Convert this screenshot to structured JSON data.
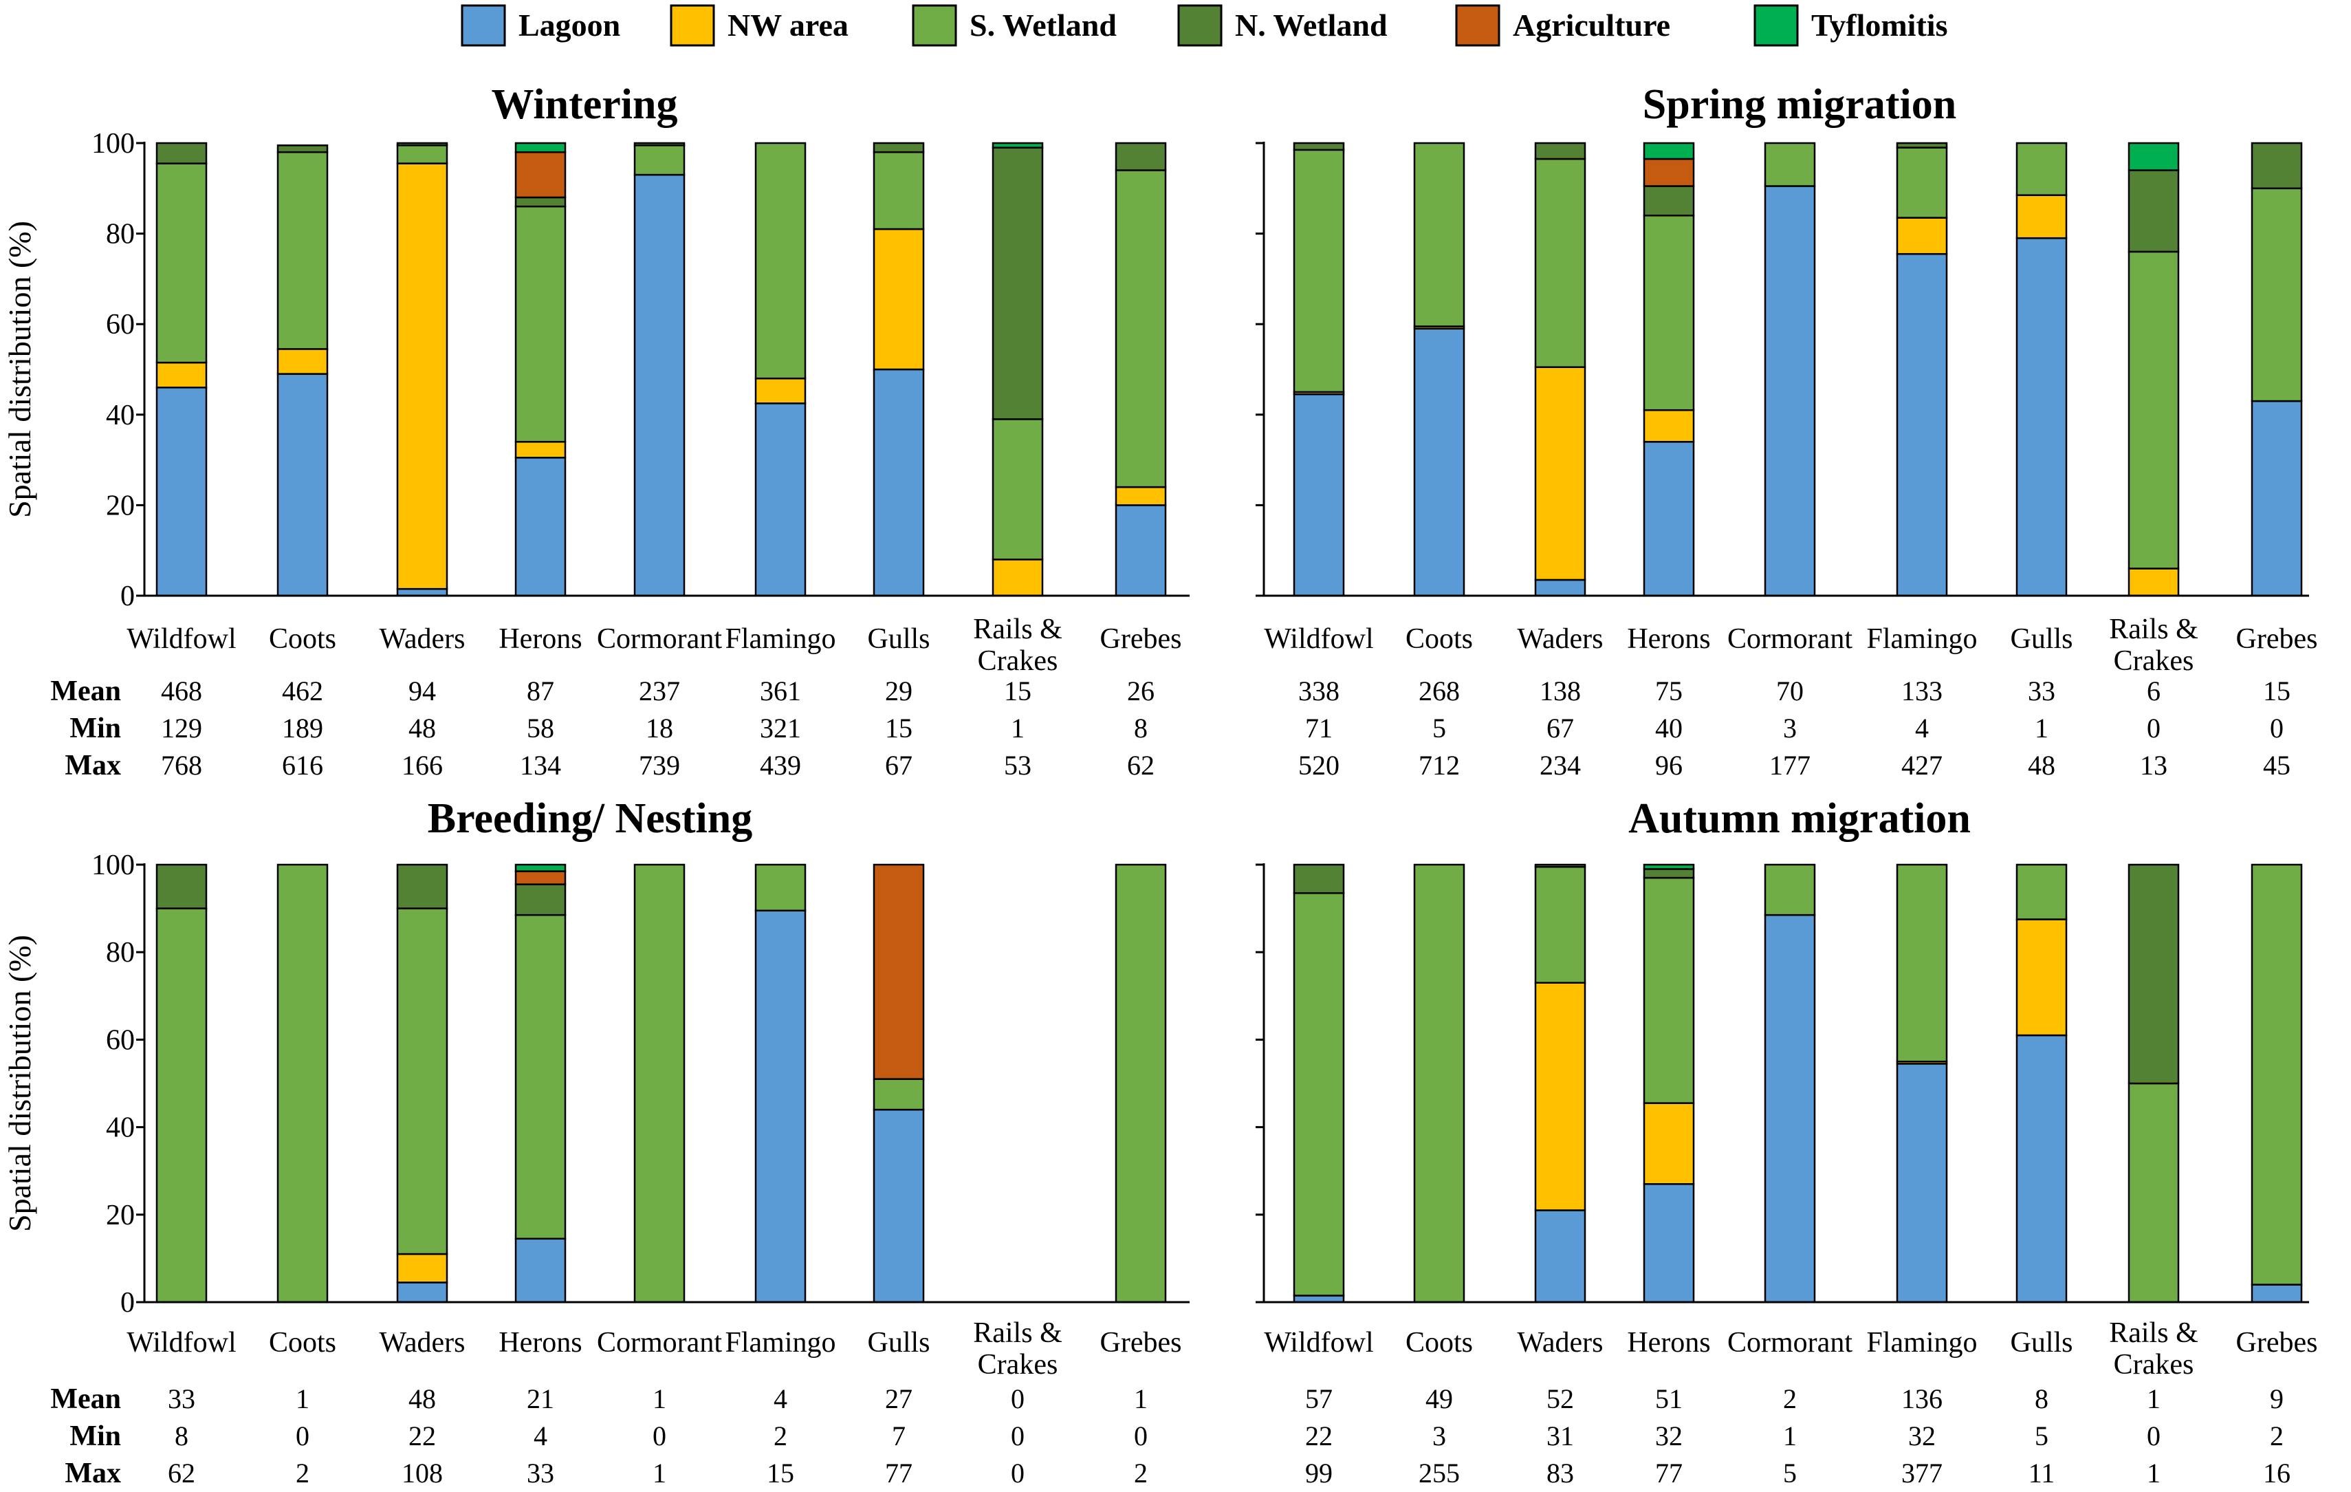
{
  "chart_data": {
    "type": "bar",
    "stacked": true,
    "legend": [
      {
        "name": "Lagoon",
        "color": "#5B9BD5"
      },
      {
        "name": "NW area",
        "color": "#FFC000"
      },
      {
        "name": "S. Wetland",
        "color": "#70AD47"
      },
      {
        "name": "N. Wetland",
        "color": "#548235"
      },
      {
        "name": "Agriculture",
        "color": "#C55A11"
      },
      {
        "name": "Tyflomitis",
        "color": "#00B050"
      }
    ],
    "ylabel": "Spatial distribution (%)",
    "ylim": [
      0,
      100
    ],
    "yticks": [
      "0",
      "20",
      "40",
      "60",
      "80",
      "100"
    ],
    "row_labels": [
      "Mean",
      "Min",
      "Max"
    ],
    "panels": [
      {
        "title": "Wintering",
        "categories": [
          "Wildfowl",
          "Coots",
          "Waders",
          "Herons",
          "Cormorant",
          "Flamingo",
          "Gulls",
          "Rails & Crakes",
          "Grebes"
        ],
        "series": [
          {
            "name": "Lagoon",
            "values": [
              46,
              49,
              1.5,
              30.5,
              93,
              42.5,
              50,
              0,
              20
            ]
          },
          {
            "name": "NW area",
            "values": [
              5.5,
              5.5,
              94,
              3.5,
              0,
              5.5,
              31,
              8,
              4
            ]
          },
          {
            "name": "S. Wetland",
            "values": [
              44,
              43.5,
              4,
              52,
              6.5,
              52,
              17,
              31,
              70
            ]
          },
          {
            "name": "N. Wetland",
            "values": [
              4.5,
              1.5,
              0.5,
              2,
              0.5,
              0,
              2,
              60,
              6
            ]
          },
          {
            "name": "Agriculture",
            "values": [
              0,
              0,
              0,
              10,
              0,
              0,
              0,
              0,
              0
            ]
          },
          {
            "name": "Tyflomitis",
            "values": [
              0,
              0,
              0,
              2,
              0,
              0,
              0,
              1,
              0
            ]
          }
        ],
        "stats": {
          "Mean": [
            "468",
            "462",
            "94",
            "87",
            "237",
            "361",
            "29",
            "15",
            "26"
          ],
          "Min": [
            "129",
            "189",
            "48",
            "58",
            "18",
            "321",
            "15",
            "1",
            "8"
          ],
          "Max": [
            "768",
            "616",
            "166",
            "134",
            "739",
            "439",
            "67",
            "53",
            "62"
          ]
        }
      },
      {
        "title": "Spring  migration",
        "categories": [
          "Wildfowl",
          "Coots",
          "Waders",
          "Herons",
          "Cormorant",
          "Flamingo",
          "Gulls",
          "Rails & Crakes",
          "Grebes"
        ],
        "series": [
          {
            "name": "Lagoon",
            "values": [
              44.5,
              59,
              3.5,
              34,
              90.5,
              75.5,
              79,
              0,
              43
            ]
          },
          {
            "name": "NW area",
            "values": [
              0.5,
              0.5,
              47,
              7,
              0,
              8,
              9.5,
              6,
              0
            ]
          },
          {
            "name": "S. Wetland",
            "values": [
              53.5,
              40.5,
              46,
              43,
              9.5,
              15.5,
              11.5,
              70,
              47
            ]
          },
          {
            "name": "N. Wetland",
            "values": [
              1.5,
              0,
              3.5,
              6.5,
              0,
              1,
              0,
              18,
              10
            ]
          },
          {
            "name": "Agriculture",
            "values": [
              0,
              0,
              0,
              6,
              0,
              0,
              0,
              0,
              0
            ]
          },
          {
            "name": "Tyflomitis",
            "values": [
              0,
              0,
              0,
              3.5,
              0,
              0,
              0,
              6,
              0
            ]
          }
        ],
        "stats": {
          "Mean": [
            "338",
            "268",
            "138",
            "75",
            "70",
            "133",
            "33",
            "6",
            "15"
          ],
          "Min": [
            "71",
            "5",
            "67",
            "40",
            "3",
            "4",
            "1",
            "0",
            "0"
          ],
          "Max": [
            "520",
            "712",
            "234",
            "96",
            "177",
            "427",
            "48",
            "13",
            "45"
          ]
        }
      },
      {
        "title": "Breeding/ Nesting",
        "categories": [
          "Wildfowl",
          "Coots",
          "Waders",
          "Herons",
          "Cormorant",
          "Flamingo",
          "Gulls",
          "Rails & Crakes",
          "Grebes"
        ],
        "series": [
          {
            "name": "Lagoon",
            "values": [
              0,
              0,
              4.5,
              14.5,
              0,
              89.5,
              44,
              0,
              0
            ]
          },
          {
            "name": "NW area",
            "values": [
              0,
              0,
              6.5,
              0,
              0,
              0,
              0,
              0,
              0
            ]
          },
          {
            "name": "S. Wetland",
            "values": [
              90,
              100,
              79,
              74,
              100,
              10.5,
              7,
              0,
              100
            ]
          },
          {
            "name": "N. Wetland",
            "values": [
              10,
              0,
              10,
              7,
              0,
              0,
              0,
              0,
              0
            ]
          },
          {
            "name": "Agriculture",
            "values": [
              0,
              0,
              0,
              3,
              0,
              0,
              49,
              0,
              0
            ]
          },
          {
            "name": "Tyflomitis",
            "values": [
              0,
              0,
              0,
              1.5,
              0,
              0,
              0,
              0,
              0
            ]
          }
        ],
        "stats": {
          "Mean": [
            "33",
            "1",
            "48",
            "21",
            "1",
            "4",
            "27",
            "0",
            "1"
          ],
          "Min": [
            "8",
            "0",
            "22",
            "4",
            "0",
            "2",
            "7",
            "0",
            "0"
          ],
          "Max": [
            "62",
            "2",
            "108",
            "33",
            "1",
            "15",
            "77",
            "0",
            "2"
          ]
        }
      },
      {
        "title": "Autumn migration",
        "categories": [
          "Wildfowl",
          "Coots",
          "Waders",
          "Herons",
          "Cormorant",
          "Flamingo",
          "Gulls",
          "Rails & Crakes",
          "Grebes"
        ],
        "series": [
          {
            "name": "Lagoon",
            "values": [
              1.5,
              0,
              21,
              27,
              88.5,
              54.5,
              61,
              0,
              4
            ]
          },
          {
            "name": "NW area",
            "values": [
              0,
              0,
              52,
              18.5,
              0,
              0.5,
              26.5,
              0,
              0
            ]
          },
          {
            "name": "S. Wetland",
            "values": [
              92,
              100,
              26.5,
              51.5,
              11.5,
              45,
              12.5,
              50,
              96
            ]
          },
          {
            "name": "N. Wetland",
            "values": [
              6.5,
              0,
              0.5,
              2,
              0,
              0,
              0,
              50,
              0
            ]
          },
          {
            "name": "Agriculture",
            "values": [
              0,
              0,
              0,
              0,
              0,
              0,
              0,
              0,
              0
            ]
          },
          {
            "name": "Tyflomitis",
            "values": [
              0,
              0,
              0,
              1,
              0,
              0,
              0,
              0,
              0
            ]
          }
        ],
        "stats": {
          "Mean": [
            "57",
            "49",
            "52",
            "51",
            "2",
            "136",
            "8",
            "1",
            "9"
          ],
          "Min": [
            "22",
            "3",
            "31",
            "32",
            "1",
            "32",
            "5",
            "0",
            "2"
          ],
          "Max": [
            "99",
            "255",
            "83",
            "77",
            "5",
            "377",
            "11",
            "1",
            "16"
          ]
        }
      }
    ]
  }
}
